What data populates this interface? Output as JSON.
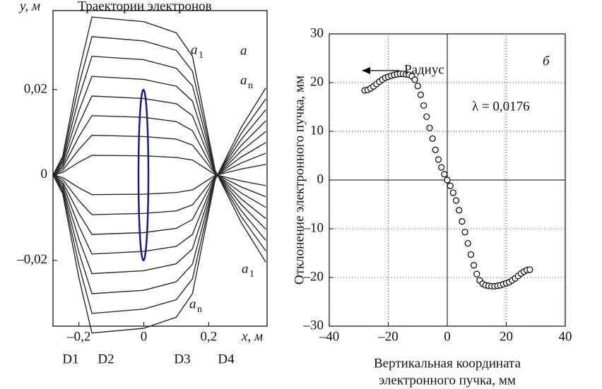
{
  "chart_data": [
    {
      "type": "line",
      "title": "Траектории электронов",
      "y_label": "y, м",
      "x_label": "x, м",
      "panel": "а",
      "regions": [
        "D1",
        "D2",
        "D3",
        "D4"
      ],
      "annotations": [
        {
          "text": "a",
          "sub": "1"
        },
        {
          "text": "a",
          "sub": "n"
        },
        {
          "text": "a",
          "sub": "1"
        },
        {
          "text": "a",
          "sub": "n"
        }
      ],
      "xlim": [
        -0.28,
        0.38
      ],
      "ylim": [
        -0.0354,
        0.0385
      ],
      "xticks": [
        {
          "value": -0.2,
          "label": "–0,2"
        },
        0,
        {
          "value": 0.2,
          "label": "0,2"
        }
      ],
      "yticks": [
        {
          "value": -0.02,
          "label": "–0,02"
        },
        0,
        {
          "value": 0.02,
          "label": "0,02"
        }
      ],
      "grid": false,
      "x": [
        -0.28,
        -0.25,
        -0.2,
        -0.16,
        0,
        0.1,
        0.15,
        0.22,
        0.3,
        0.376
      ],
      "series": [
        {
          "color": "#2a2a2a",
          "values": [
            0,
            0.0006,
            0.003,
            0.0046,
            0.0045,
            0.0041,
            0.0035,
            0.0001,
            -0.0014,
            -0.0025
          ]
        },
        {
          "color": "#2a2a2a",
          "values": [
            0,
            0.0011,
            0.006,
            0.0093,
            0.009,
            0.0084,
            0.007,
            0.0003,
            -0.0028,
            -0.0051
          ]
        },
        {
          "color": "#2a2a2a",
          "values": [
            0,
            0.0017,
            0.009,
            0.0139,
            0.0135,
            0.0125,
            0.0104,
            0.0004,
            -0.0042,
            -0.0076
          ]
        },
        {
          "color": "#2a2a2a",
          "values": [
            0,
            0.0022,
            0.012,
            0.0185,
            0.0179,
            0.0167,
            0.0139,
            0.0006,
            -0.0056,
            -0.0102
          ]
        },
        {
          "color": "#2a2a2a",
          "values": [
            0,
            0.0028,
            0.015,
            0.0231,
            0.0224,
            0.0208,
            0.0173,
            0.0007,
            -0.0069,
            -0.0127
          ]
        },
        {
          "color": "#2a2a2a",
          "values": [
            0,
            0.0033,
            0.0181,
            0.0278,
            0.027,
            0.025,
            0.0209,
            0.0008,
            -0.0083,
            -0.0153
          ]
        },
        {
          "color": "#2a2a2a",
          "values": [
            0,
            0.0039,
            0.0211,
            0.0324,
            0.0314,
            0.0292,
            0.0243,
            0.001,
            -0.0097,
            -0.0178
          ]
        },
        {
          "color": "#2a2a2a",
          "values": [
            0,
            0.0044,
            0.0241,
            0.037,
            0.0359,
            0.0333,
            0.0278,
            0.0011,
            -0.0111,
            -0.0204
          ]
        },
        {
          "color": "#2a2a2a",
          "values": [
            0,
            -0.0006,
            -0.003,
            -0.0046,
            -0.0045,
            -0.0041,
            -0.0035,
            -0.0001,
            0.0014,
            0.0025
          ]
        },
        {
          "color": "#2a2a2a",
          "values": [
            0,
            -0.0011,
            -0.006,
            -0.0093,
            -0.009,
            -0.0084,
            -0.007,
            -0.0003,
            0.0028,
            0.0051
          ]
        },
        {
          "color": "#2a2a2a",
          "values": [
            0,
            -0.0017,
            -0.009,
            -0.0139,
            -0.0135,
            -0.0125,
            -0.0104,
            -0.0004,
            0.0042,
            0.0076
          ]
        },
        {
          "color": "#2a2a2a",
          "values": [
            0,
            -0.0022,
            -0.012,
            -0.0185,
            -0.0179,
            -0.0167,
            -0.0139,
            -0.0006,
            0.0056,
            0.0102
          ]
        },
        {
          "color": "#2a2a2a",
          "values": [
            0,
            -0.0028,
            -0.015,
            -0.0231,
            -0.0224,
            -0.0208,
            -0.0173,
            -0.0007,
            0.0069,
            0.0127
          ]
        },
        {
          "color": "#2a2a2a",
          "values": [
            0,
            -0.0033,
            -0.0181,
            -0.0278,
            -0.027,
            -0.025,
            -0.0209,
            -0.0008,
            0.0083,
            0.0153
          ]
        },
        {
          "color": "#2a2a2a",
          "values": [
            0,
            -0.0039,
            -0.0211,
            -0.0324,
            -0.0314,
            -0.0292,
            -0.0243,
            -0.001,
            0.0097,
            0.0178
          ]
        },
        {
          "color": "#2a2a2a",
          "values": [
            0,
            -0.0044,
            -0.0241,
            -0.037,
            -0.0359,
            -0.0333,
            -0.0278,
            -0.0011,
            0.0111,
            0.0204
          ]
        }
      ]
    },
    {
      "type": "scatter",
      "panel": "б",
      "y_label": "Отклонение электронного пучка, мм",
      "x_label": [
        "Вертикальная координата",
        "электронного пучка, мм"
      ],
      "annotations": [
        "Радиус",
        "λ = 0,0176"
      ],
      "xlim": [
        -40,
        40
      ],
      "ylim": [
        -30,
        30
      ],
      "xticks": [
        {
          "value": -40,
          "label": "–40"
        },
        {
          "value": -20,
          "label": "–20"
        },
        0,
        20,
        40
      ],
      "yticks": [
        {
          "value": -30,
          "label": "–30"
        },
        {
          "value": -20,
          "label": "–20"
        },
        {
          "value": -10,
          "label": "–10"
        },
        0,
        10,
        20,
        30
      ],
      "grid": true,
      "color": "#000",
      "x": [
        -28,
        -27,
        -26,
        -25,
        -24,
        -23,
        -22,
        -21,
        -20,
        -19,
        -18,
        -17,
        -16,
        -15,
        -14,
        -13,
        -12,
        -11,
        -10,
        -9,
        -8,
        -7,
        -6,
        -5,
        -4,
        -3,
        -2,
        -1,
        0,
        1,
        2,
        3,
        4,
        5,
        6,
        7,
        8,
        9,
        10,
        11,
        12,
        13,
        14,
        15,
        16,
        17,
        18,
        19,
        20,
        21,
        22,
        23,
        24,
        25,
        26,
        27,
        28
      ],
      "values": [
        18.4,
        18.5,
        18.8,
        19.2,
        19.7,
        20.2,
        20.6,
        21,
        21.2,
        21.4,
        21.6,
        21.7,
        21.8,
        21.8,
        21.7,
        21.6,
        21.3,
        20.6,
        19.3,
        17.5,
        15.3,
        13,
        10.7,
        8.5,
        6.2,
        4.2,
        2.6,
        1.2,
        0,
        -1.2,
        -2.6,
        -4.2,
        -6.2,
        -8.5,
        -10.7,
        -13,
        -15.3,
        -17.5,
        -19.3,
        -20.6,
        -21.3,
        -21.6,
        -21.7,
        -21.8,
        -21.8,
        -21.7,
        -21.6,
        -21.4,
        -21.2,
        -21,
        -20.6,
        -20.2,
        -19.7,
        -19.2,
        -18.8,
        -18.5,
        -18.4
      ]
    }
  ]
}
